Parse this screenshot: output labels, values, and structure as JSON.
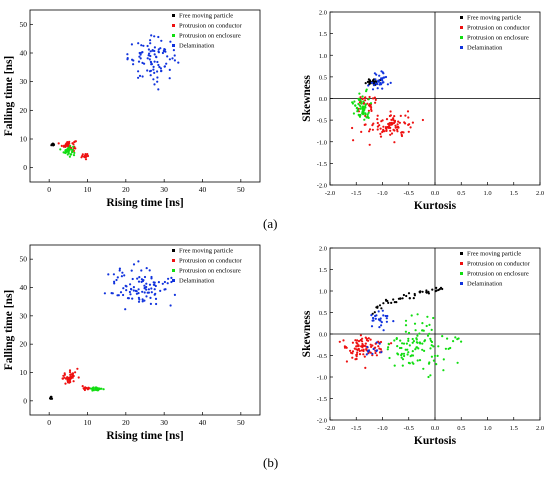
{
  "captions": [
    "(a)",
    "(b)"
  ],
  "colors": {
    "free": "#000000",
    "conductor": "#ee1111",
    "enclosure": "#11dd11",
    "delamination": "#1133dd"
  },
  "chart_data": [
    {
      "id": "a-left",
      "type": "scatter",
      "xlabel": "Rising time [ns]",
      "ylabel": "Falling time [ns]",
      "xlim": [
        -5,
        55
      ],
      "ylim": [
        -5,
        55
      ],
      "xticks": [
        0,
        10,
        20,
        30,
        40,
        50
      ],
      "yticks": [
        0,
        10,
        20,
        30,
        40,
        50
      ],
      "grid": false,
      "legend_position": "top-right",
      "series": [
        {
          "name": "Free moving particle",
          "color": "#000000",
          "clusters": [
            {
              "cx": 1,
              "cy": 8,
              "sx": 0.2,
              "sy": 0.5,
              "n": 6
            }
          ]
        },
        {
          "name": "Protrusion on conductor",
          "color": "#ee1111",
          "clusters": [
            {
              "cx": 5,
              "cy": 8,
              "sx": 1.0,
              "sy": 0.8,
              "n": 40
            },
            {
              "cx": 9.5,
              "cy": 4,
              "sx": 0.6,
              "sy": 0.5,
              "n": 15
            }
          ]
        },
        {
          "name": "Protrusion on enclosure",
          "color": "#11dd11",
          "clusters": [
            {
              "cx": 5,
              "cy": 6,
              "sx": 0.6,
              "sy": 1.0,
              "n": 35
            }
          ]
        },
        {
          "name": "Delamination",
          "color": "#1133dd",
          "clusters": [
            {
              "cx": 27,
              "cy": 38,
              "sx": 3.2,
              "sy": 3.5,
              "n": 90
            }
          ]
        }
      ]
    },
    {
      "id": "a-right",
      "type": "scatter",
      "xlabel": "Kurtosis",
      "ylabel": "Skewness",
      "xlim": [
        -2.0,
        2.0
      ],
      "ylim": [
        -2.0,
        2.0
      ],
      "xticks": [
        -2.0,
        -1.5,
        -1.0,
        -0.5,
        0.0,
        0.5,
        1.0,
        1.5,
        2.0
      ],
      "yticks": [
        -2.0,
        -1.5,
        -1.0,
        -0.5,
        0.0,
        0.5,
        1.0,
        1.5,
        2.0
      ],
      "grid": false,
      "legend_position": "top-left",
      "crosshair": [
        0,
        0
      ],
      "series": [
        {
          "name": "Free moving particle",
          "color": "#000000",
          "clusters": [
            {
              "cx": -1.2,
              "cy": 0.38,
              "sx": 0.06,
              "sy": 0.04,
              "n": 25
            }
          ]
        },
        {
          "name": "Protrusion on conductor",
          "color": "#ee1111",
          "clusters": [
            {
              "cx": -0.85,
              "cy": -0.62,
              "sx": 0.22,
              "sy": 0.15,
              "n": 90
            },
            {
              "cx": -1.3,
              "cy": -0.15,
              "sx": 0.1,
              "sy": 0.12,
              "n": 30
            }
          ]
        },
        {
          "name": "Protrusion on enclosure",
          "color": "#11dd11",
          "clusters": [
            {
              "cx": -1.4,
              "cy": -0.2,
              "sx": 0.08,
              "sy": 0.15,
              "n": 60
            }
          ]
        },
        {
          "name": "Delamination",
          "color": "#1133dd",
          "clusters": [
            {
              "cx": -1.05,
              "cy": 0.4,
              "sx": 0.1,
              "sy": 0.12,
              "n": 35
            }
          ]
        }
      ]
    },
    {
      "id": "b-left",
      "type": "scatter",
      "xlabel": "Rising time [ns]",
      "ylabel": "Falling time [ns]",
      "xlim": [
        -5,
        55
      ],
      "ylim": [
        -5,
        55
      ],
      "xticks": [
        0,
        10,
        20,
        30,
        40,
        50
      ],
      "yticks": [
        0,
        10,
        20,
        30,
        40,
        50
      ],
      "grid": false,
      "legend_position": "top-right",
      "series": [
        {
          "name": "Free moving particle",
          "color": "#000000",
          "clusters": [
            {
              "cx": 0.5,
              "cy": 1,
              "sx": 0.2,
              "sy": 0.3,
              "n": 12
            }
          ]
        },
        {
          "name": "Protrusion on conductor",
          "color": "#ee1111",
          "clusters": [
            {
              "cx": 5.5,
              "cy": 8.5,
              "sx": 1.0,
              "sy": 1.1,
              "n": 45
            },
            {
              "cx": 9.5,
              "cy": 4.5,
              "sx": 0.6,
              "sy": 0.4,
              "n": 15
            }
          ]
        },
        {
          "name": "Protrusion on enclosure",
          "color": "#11dd11",
          "clusters": [
            {
              "cx": 12,
              "cy": 4,
              "sx": 1.0,
              "sy": 0.4,
              "n": 25
            }
          ]
        },
        {
          "name": "Delamination",
          "color": "#1133dd",
          "clusters": [
            {
              "cx": 24,
              "cy": 40,
              "sx": 4.0,
              "sy": 3.5,
              "n": 100
            }
          ]
        }
      ]
    },
    {
      "id": "b-right",
      "type": "scatter",
      "xlabel": "Kurtosis",
      "ylabel": "Skewness",
      "xlim": [
        -2.0,
        2.0
      ],
      "ylim": [
        -2.0,
        2.0
      ],
      "xticks": [
        -2.0,
        -1.5,
        -1.0,
        -0.5,
        0.0,
        0.5,
        1.0,
        1.5,
        2.0
      ],
      "yticks": [
        -2.0,
        -1.5,
        -1.0,
        -0.5,
        0.0,
        0.5,
        1.0,
        1.5,
        2.0
      ],
      "grid": false,
      "legend_position": "top-left",
      "crosshair": [
        0,
        0
      ],
      "series": [
        {
          "name": "Free moving particle",
          "color": "#000000",
          "trend": {
            "x0": -1.2,
            "y0": 0.45,
            "x1": 0.15,
            "y1": 1.05,
            "n": 45,
            "jitter": 0.04
          }
        },
        {
          "name": "Protrusion on conductor",
          "color": "#ee1111",
          "clusters": [
            {
              "cx": -1.35,
              "cy": -0.32,
              "sx": 0.2,
              "sy": 0.14,
              "n": 90
            }
          ]
        },
        {
          "name": "Protrusion on enclosure",
          "color": "#11dd11",
          "clusters": [
            {
              "cx": -0.3,
              "cy": -0.3,
              "sx": 0.3,
              "sy": 0.3,
              "n": 110
            }
          ]
        },
        {
          "name": "Delamination",
          "color": "#1133dd",
          "clusters": [
            {
              "cx": -1.05,
              "cy": 0.35,
              "sx": 0.12,
              "sy": 0.12,
              "n": 25
            },
            {
              "cx": -1.15,
              "cy": -0.35,
              "sx": 0.08,
              "sy": 0.08,
              "n": 12
            }
          ]
        }
      ]
    }
  ]
}
